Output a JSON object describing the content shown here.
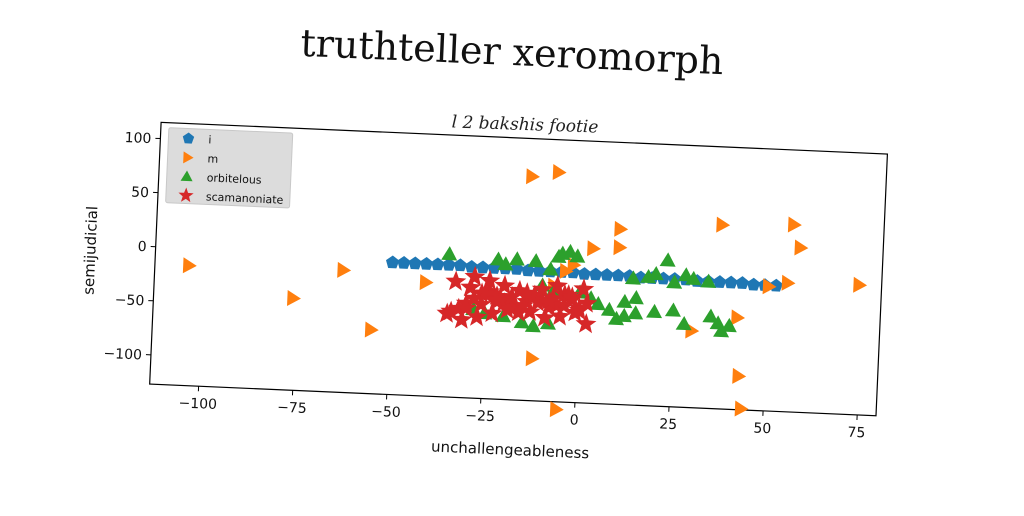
{
  "page": {
    "title": "truthteller xeromorph"
  },
  "chart_data": {
    "type": "scatter",
    "title": "l 2 bakshis footie",
    "xlabel": "unchallengeableness",
    "ylabel": "semijudicial",
    "xlim": [
      -113,
      80
    ],
    "ylim": [
      -127,
      115
    ],
    "xticks": [
      -100,
      -75,
      -50,
      -25,
      0,
      25,
      50,
      75
    ],
    "yticks": [
      100,
      50,
      0,
      -50,
      -100
    ],
    "xtick_labels": [
      "−100",
      "−75",
      "−50",
      "−25",
      "0",
      "25",
      "50",
      "75"
    ],
    "ytick_labels": [
      "100",
      "50",
      "0",
      "−50",
      "−100"
    ],
    "legend_position": "top-left",
    "grid": false,
    "series": [
      {
        "name": "i",
        "marker": "pentagon",
        "color": "#1f77b4",
        "x": [
          -50,
          -47,
          -44,
          -41,
          -38,
          -35,
          -32,
          -29,
          -26,
          -23,
          -20,
          -17,
          -14,
          -11,
          -8,
          -5,
          -2,
          1,
          4,
          7,
          10,
          13,
          16,
          19,
          22,
          25,
          28,
          31,
          34,
          37,
          40,
          43,
          46,
          49,
          52
        ],
        "y": [
          -5,
          -5,
          -5,
          -5,
          -5,
          -5,
          -5,
          -6,
          -6,
          -6,
          -6,
          -6,
          -7,
          -7,
          -7,
          -7,
          -7,
          -8,
          -8,
          -8,
          -8,
          -8,
          -9,
          -9,
          -9,
          -9,
          -9,
          -10,
          -10,
          -10,
          -10,
          -10,
          -11,
          -11,
          -11
        ]
      },
      {
        "name": "m",
        "marker": "triangle-right",
        "color": "#ff7f0e",
        "x": [
          -104,
          -76,
          -63,
          -55,
          -41,
          -14,
          -7,
          -12,
          -5,
          3,
          10,
          10,
          -4,
          -2,
          37,
          56,
          58,
          55,
          74,
          30,
          43,
          44,
          42,
          -7,
          50
        ],
        "y": [
          -16,
          -42,
          -14,
          -68,
          -22,
          80,
          85,
          -88,
          -134,
          16,
          18,
          35,
          -6,
          0,
          43,
          46,
          25,
          -8,
          -7,
          -56,
          -96,
          -126,
          -42,
          -20,
          -12
        ]
      },
      {
        "name": "orbitelous",
        "marker": "triangle-up",
        "color": "#2ca02c",
        "x": [
          -35,
          -22,
          -20,
          -17,
          -12,
          -8,
          -6,
          -5,
          -3,
          -1,
          -10,
          -7,
          0,
          3,
          5,
          8,
          12,
          14,
          18,
          20,
          23,
          25,
          28,
          30,
          34,
          37,
          40,
          -28,
          -25,
          -20,
          -15,
          -12,
          -8,
          10,
          15,
          20,
          25,
          28,
          35,
          38,
          12,
          15
        ],
        "y": [
          5,
          2,
          -2,
          3,
          2,
          -5,
          7,
          10,
          12,
          8,
          -20,
          -25,
          -25,
          -30,
          -35,
          -40,
          -45,
          -10,
          -8,
          -5,
          8,
          -12,
          -5,
          -8,
          -10,
          -48,
          -50,
          -45,
          -48,
          -50,
          -55,
          -58,
          -55,
          -48,
          -42,
          -40,
          -38,
          -50,
          -42,
          -55,
          -32,
          -28
        ]
      },
      {
        "name": "scamanoniate",
        "marker": "star",
        "color": "#d62728",
        "x": [
          -35,
          -32,
          -30,
          -28,
          -26,
          -24,
          -22,
          -20,
          -18,
          -16,
          -14,
          -12,
          -10,
          -8,
          -6,
          -4,
          -2,
          0,
          2,
          -33,
          -29,
          -25,
          -21,
          -17,
          -13,
          -9,
          -5,
          -1,
          -31,
          -27,
          -23,
          -19,
          -15,
          -11,
          -7,
          -3,
          1,
          -28,
          -24,
          -20,
          -16,
          -12,
          -8,
          -4,
          0,
          -34,
          -30,
          -26,
          -22,
          -18,
          -14,
          -10,
          -6,
          -2,
          2
        ],
        "y": [
          -50,
          -45,
          -40,
          -35,
          -30,
          -28,
          -32,
          -38,
          -42,
          -46,
          -36,
          -30,
          -34,
          -40,
          -38,
          -28,
          -32,
          -40,
          -54,
          -20,
          -25,
          -30,
          -35,
          -40,
          -45,
          -50,
          -48,
          -44,
          -55,
          -52,
          -48,
          -44,
          -40,
          -36,
          -32,
          -28,
          -22,
          -15,
          -18,
          -22,
          -26,
          -30,
          -34,
          -38,
          -42,
          -48,
          -44,
          -40,
          -36,
          -32,
          -28,
          -24,
          -20,
          -30,
          -35
        ]
      }
    ]
  }
}
